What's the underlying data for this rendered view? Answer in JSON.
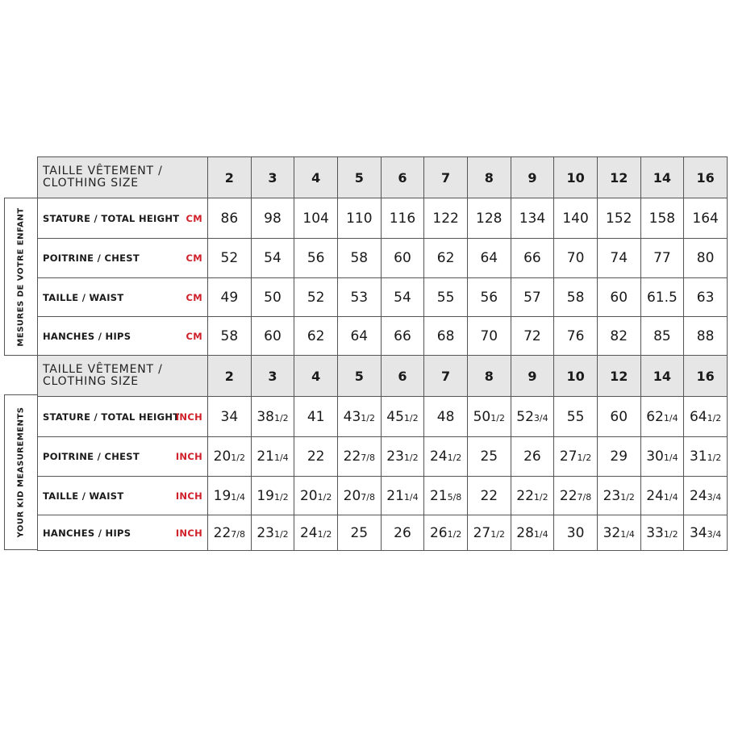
{
  "sections": [
    {
      "side_label": "MESURES DE VOTRE ENFANT",
      "header_label_1": "TAILLE VÊTEMENT /",
      "header_label_2": "CLOTHING SIZE",
      "sizes": [
        "2",
        "3",
        "4",
        "5",
        "6",
        "7",
        "8",
        "9",
        "10",
        "12",
        "14",
        "16"
      ],
      "rows": [
        {
          "label": "STATURE / TOTAL HEIGHT",
          "unit": "CM",
          "values": [
            {
              "w": "86"
            },
            {
              "w": "98"
            },
            {
              "w": "104"
            },
            {
              "w": "110"
            },
            {
              "w": "116"
            },
            {
              "w": "122"
            },
            {
              "w": "128"
            },
            {
              "w": "134"
            },
            {
              "w": "140"
            },
            {
              "w": "152"
            },
            {
              "w": "158"
            },
            {
              "w": "164"
            }
          ]
        },
        {
          "label": "POITRINE / CHEST",
          "unit": "CM",
          "values": [
            {
              "w": "52"
            },
            {
              "w": "54"
            },
            {
              "w": "56"
            },
            {
              "w": "58"
            },
            {
              "w": "60"
            },
            {
              "w": "62"
            },
            {
              "w": "64"
            },
            {
              "w": "66"
            },
            {
              "w": "70"
            },
            {
              "w": "74"
            },
            {
              "w": "77"
            },
            {
              "w": "80"
            }
          ]
        },
        {
          "label": "TAILLE / WAIST",
          "unit": "CM",
          "values": [
            {
              "w": "49"
            },
            {
              "w": "50"
            },
            {
              "w": "52"
            },
            {
              "w": "53"
            },
            {
              "w": "54"
            },
            {
              "w": "55"
            },
            {
              "w": "56"
            },
            {
              "w": "57"
            },
            {
              "w": "58"
            },
            {
              "w": "60"
            },
            {
              "w": "61.5"
            },
            {
              "w": "63"
            }
          ]
        },
        {
          "label": "HANCHES / HIPS",
          "unit": "CM",
          "values": [
            {
              "w": "58"
            },
            {
              "w": "60"
            },
            {
              "w": "62"
            },
            {
              "w": "64"
            },
            {
              "w": "66"
            },
            {
              "w": "68"
            },
            {
              "w": "70"
            },
            {
              "w": "72"
            },
            {
              "w": "76"
            },
            {
              "w": "82"
            },
            {
              "w": "85"
            },
            {
              "w": "88"
            }
          ]
        }
      ]
    },
    {
      "side_label": "YOUR KID MEASUREMENTS",
      "header_label_1": "TAILLE VÊTEMENT /",
      "header_label_2": "CLOTHING SIZE",
      "sizes": [
        "2",
        "3",
        "4",
        "5",
        "6",
        "7",
        "8",
        "9",
        "10",
        "12",
        "14",
        "16"
      ],
      "rows": [
        {
          "label": "STATURE / TOTAL HEIGHT",
          "unit": "INCH",
          "values": [
            {
              "w": "34"
            },
            {
              "w": "38",
              "f": "1/2"
            },
            {
              "w": "41"
            },
            {
              "w": "43",
              "f": "1/2"
            },
            {
              "w": "45",
              "f": "1/2"
            },
            {
              "w": "48"
            },
            {
              "w": "50",
              "f": "1/2"
            },
            {
              "w": "52",
              "f": "3/4"
            },
            {
              "w": "55"
            },
            {
              "w": "60"
            },
            {
              "w": "62",
              "f": "1/4"
            },
            {
              "w": "64",
              "f": "1/2"
            }
          ]
        },
        {
          "label": "POITRINE / CHEST",
          "unit": "INCH",
          "values": [
            {
              "w": "20",
              "f": "1/2"
            },
            {
              "w": "21",
              "f": "1/4"
            },
            {
              "w": "22"
            },
            {
              "w": "22",
              "f": "7/8"
            },
            {
              "w": "23",
              "f": "1/2"
            },
            {
              "w": "24",
              "f": "1/2"
            },
            {
              "w": "25"
            },
            {
              "w": "26"
            },
            {
              "w": "27",
              "f": "1/2"
            },
            {
              "w": "29"
            },
            {
              "w": "30",
              "f": "1/4"
            },
            {
              "w": "31",
              "f": "1/2"
            }
          ]
        },
        {
          "label": "TAILLE / WAIST",
          "unit": "INCH",
          "values": [
            {
              "w": "19",
              "f": "1/4"
            },
            {
              "w": "19",
              "f": "1/2"
            },
            {
              "w": "20",
              "f": "1/2"
            },
            {
              "w": "20",
              "f": "7/8"
            },
            {
              "w": "21",
              "f": "1/4"
            },
            {
              "w": "21",
              "f": "5/8"
            },
            {
              "w": "22"
            },
            {
              "w": "22",
              "f": "1/2"
            },
            {
              "w": "22",
              "f": "7/8"
            },
            {
              "w": "23",
              "f": "1/2"
            },
            {
              "w": "24",
              "f": "1/4"
            },
            {
              "w": "24",
              "f": "3/4"
            }
          ]
        },
        {
          "label": "HANCHES / HIPS",
          "unit": "INCH",
          "values": [
            {
              "w": "22",
              "f": "7/8"
            },
            {
              "w": "23",
              "f": "1/2"
            },
            {
              "w": "24",
              "f": "1/2"
            },
            {
              "w": "25"
            },
            {
              "w": "26"
            },
            {
              "w": "26",
              "f": "1/2"
            },
            {
              "w": "27",
              "f": "1/2"
            },
            {
              "w": "28",
              "f": "1/4"
            },
            {
              "w": "30"
            },
            {
              "w": "32",
              "f": "1/4"
            },
            {
              "w": "33",
              "f": "1/2"
            },
            {
              "w": "34",
              "f": "3/4"
            }
          ]
        }
      ]
    }
  ],
  "colors": {
    "unit": "#d0202a",
    "header_bg": "#e6e6e6",
    "border": "#555555"
  }
}
